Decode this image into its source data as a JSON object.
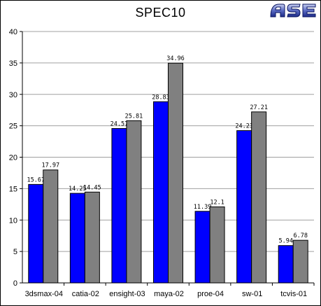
{
  "chart_data": {
    "type": "bar",
    "title": "SPEC10",
    "categories": [
      "3dsmax-04",
      "catia-02",
      "ensight-03",
      "maya-02",
      "proe-04",
      "sw-01",
      "tcvis-01"
    ],
    "series": [
      {
        "color": "#0000ff",
        "values": [
          15.67,
          14.25,
          24.57,
          28.83,
          11.39,
          24.23,
          5.94
        ],
        "labels": [
          "15.67",
          "14.25",
          "24.57",
          "28.83",
          "11.39",
          "24.23",
          "5.94"
        ]
      },
      {
        "color": "#808080",
        "values": [
          17.97,
          14.45,
          25.81,
          34.96,
          12.1,
          27.21,
          6.78
        ],
        "labels": [
          "17.97",
          "14.45",
          "25.81",
          "34.96",
          "12.1",
          "27.21",
          "6.78"
        ]
      }
    ],
    "ylim": [
      0,
      40
    ],
    "yticks": [
      "0",
      "5",
      "10",
      "15",
      "20",
      "25",
      "30",
      "35",
      "40"
    ],
    "grid": true,
    "legend": "none"
  },
  "logo": {
    "text": "ASE"
  }
}
